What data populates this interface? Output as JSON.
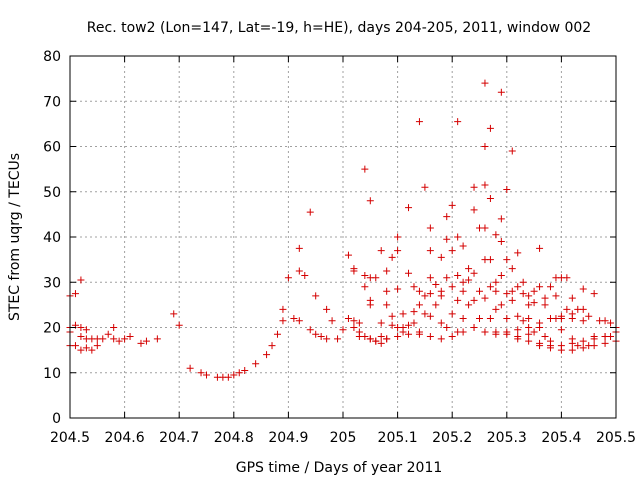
{
  "chart_data": {
    "type": "scatter",
    "title": "Rec. tow2 (Lon=147, Lat=-19, h=HE), days 204-205, 2011, window 002",
    "xlabel": "GPS time / Days of year 2011",
    "ylabel": "STEC from uqrg / TECUs",
    "xlim": [
      204.5,
      205.5
    ],
    "ylim": [
      0,
      80
    ],
    "xticks": [
      204.5,
      204.6,
      204.7,
      204.8,
      204.9,
      205,
      205.1,
      205.2,
      205.3,
      205.4,
      205.5
    ],
    "xtick_labels": [
      "204.5",
      "204.6",
      "204.7",
      "204.8",
      "204.9",
      "205",
      "205.1",
      "205.2",
      "205.3",
      "205.4",
      "205.5"
    ],
    "yticks": [
      0,
      10,
      20,
      30,
      40,
      50,
      60,
      70,
      80
    ],
    "ytick_labels": [
      "0",
      "10",
      "20",
      "30",
      "40",
      "50",
      "60",
      "70",
      "80"
    ],
    "grid": true,
    "marker": "+",
    "marker_color": "#d40000",
    "series": [
      {
        "name": "STEC",
        "points": [
          [
            204.5,
            27
          ],
          [
            204.51,
            27.5
          ],
          [
            204.52,
            30.5
          ],
          [
            204.5,
            20
          ],
          [
            204.51,
            20.5
          ],
          [
            204.52,
            20
          ],
          [
            204.53,
            19.5
          ],
          [
            204.5,
            19
          ],
          [
            204.52,
            18
          ],
          [
            204.53,
            17.5
          ],
          [
            204.54,
            17.5
          ],
          [
            204.55,
            17.5
          ],
          [
            204.56,
            17.5
          ],
          [
            204.57,
            18.5
          ],
          [
            204.58,
            20
          ],
          [
            204.58,
            17.5
          ],
          [
            204.59,
            17
          ],
          [
            204.6,
            17.5
          ],
          [
            204.61,
            18
          ],
          [
            204.63,
            16.5
          ],
          [
            204.64,
            17
          ],
          [
            204.66,
            17.5
          ],
          [
            204.5,
            16
          ],
          [
            204.51,
            16
          ],
          [
            204.52,
            15
          ],
          [
            204.53,
            15.5
          ],
          [
            204.54,
            15
          ],
          [
            204.55,
            16
          ],
          [
            204.69,
            23
          ],
          [
            204.7,
            20.5
          ],
          [
            204.72,
            11
          ],
          [
            204.74,
            10
          ],
          [
            204.75,
            9.5
          ],
          [
            204.77,
            9
          ],
          [
            204.78,
            9
          ],
          [
            204.79,
            9
          ],
          [
            204.8,
            9.5
          ],
          [
            204.81,
            10
          ],
          [
            204.82,
            10.5
          ],
          [
            204.84,
            12
          ],
          [
            204.86,
            14
          ],
          [
            204.87,
            16
          ],
          [
            204.88,
            18.5
          ],
          [
            204.89,
            21.5
          ],
          [
            204.89,
            24
          ],
          [
            204.9,
            31
          ],
          [
            204.91,
            22
          ],
          [
            204.92,
            21.5
          ],
          [
            204.92,
            37.5
          ],
          [
            204.92,
            32.5
          ],
          [
            204.93,
            31.5
          ],
          [
            204.94,
            45.5
          ],
          [
            204.94,
            19.5
          ],
          [
            204.95,
            27
          ],
          [
            204.95,
            18.5
          ],
          [
            204.96,
            18
          ],
          [
            204.97,
            24
          ],
          [
            204.97,
            17.5
          ],
          [
            204.98,
            21.5
          ],
          [
            204.99,
            17.5
          ],
          [
            205,
            19.5
          ],
          [
            205.01,
            22
          ],
          [
            205.01,
            36
          ],
          [
            205.02,
            33
          ],
          [
            205.02,
            32.5
          ],
          [
            205.02,
            20
          ],
          [
            205.03,
            21
          ],
          [
            205.03,
            18
          ],
          [
            205.04,
            55
          ],
          [
            205.04,
            31.5
          ],
          [
            205.04,
            29
          ],
          [
            205.05,
            31
          ],
          [
            205.05,
            48
          ],
          [
            205.05,
            26
          ],
          [
            205.05,
            25
          ],
          [
            205.05,
            17.5
          ],
          [
            205.06,
            31
          ],
          [
            205.06,
            17
          ],
          [
            205.07,
            37
          ],
          [
            205.07,
            21
          ],
          [
            205.07,
            16.5
          ],
          [
            205.08,
            32.5
          ],
          [
            205.08,
            28
          ],
          [
            205.08,
            25
          ],
          [
            205.08,
            17.5
          ],
          [
            205.09,
            35.5
          ],
          [
            205.09,
            22.5
          ],
          [
            205.09,
            20.5
          ],
          [
            205.1,
            40
          ],
          [
            205.1,
            37
          ],
          [
            205.1,
            28.5
          ],
          [
            205.1,
            20
          ],
          [
            205.11,
            23
          ],
          [
            205.11,
            19
          ],
          [
            205.11,
            20
          ],
          [
            205.12,
            46.5
          ],
          [
            205.12,
            32
          ],
          [
            205.12,
            20.5
          ],
          [
            205.13,
            29
          ],
          [
            205.13,
            23.5
          ],
          [
            205.13,
            21
          ],
          [
            205.14,
            65.5
          ],
          [
            205.14,
            28
          ],
          [
            205.14,
            25
          ],
          [
            205.14,
            19
          ],
          [
            205.15,
            51
          ],
          [
            205.15,
            27
          ],
          [
            205.15,
            23
          ],
          [
            205.16,
            42
          ],
          [
            205.16,
            37
          ],
          [
            205.16,
            31
          ],
          [
            205.16,
            22.5
          ],
          [
            205.17,
            29.5
          ],
          [
            205.17,
            25
          ],
          [
            205.18,
            35.5
          ],
          [
            205.18,
            27
          ],
          [
            205.18,
            21
          ],
          [
            205.19,
            44.5
          ],
          [
            205.19,
            39.5
          ],
          [
            205.19,
            31
          ],
          [
            205.19,
            20
          ],
          [
            205.2,
            47
          ],
          [
            205.2,
            37
          ],
          [
            205.2,
            29
          ],
          [
            205.2,
            23
          ],
          [
            205.21,
            65.5
          ],
          [
            205.21,
            40
          ],
          [
            205.21,
            31.5
          ],
          [
            205.21,
            26
          ],
          [
            205.21,
            19
          ],
          [
            205.22,
            38
          ],
          [
            205.22,
            28
          ],
          [
            205.22,
            22
          ],
          [
            205.23,
            33
          ],
          [
            205.23,
            25
          ],
          [
            205.24,
            51
          ],
          [
            205.24,
            46
          ],
          [
            205.24,
            32
          ],
          [
            205.24,
            26
          ],
          [
            205.24,
            20
          ],
          [
            205.25,
            42
          ],
          [
            205.25,
            28
          ],
          [
            205.25,
            22
          ],
          [
            205.26,
            74
          ],
          [
            205.26,
            60
          ],
          [
            205.26,
            51.5
          ],
          [
            205.26,
            42
          ],
          [
            205.26,
            35
          ],
          [
            205.26,
            26.5
          ],
          [
            205.26,
            19
          ],
          [
            205.27,
            64
          ],
          [
            205.27,
            48.5
          ],
          [
            205.27,
            35
          ],
          [
            205.27,
            22
          ],
          [
            205.28,
            40.5
          ],
          [
            205.28,
            30
          ],
          [
            205.28,
            24
          ],
          [
            205.29,
            72
          ],
          [
            205.29,
            44
          ],
          [
            205.29,
            39
          ],
          [
            205.29,
            31.5
          ],
          [
            205.29,
            25
          ],
          [
            205.3,
            50.5
          ],
          [
            205.3,
            35
          ],
          [
            205.3,
            22
          ],
          [
            205.31,
            59
          ],
          [
            205.31,
            33
          ],
          [
            205.31,
            26
          ],
          [
            205.32,
            36.5
          ],
          [
            205.32,
            22.5
          ],
          [
            205.33,
            27.5
          ],
          [
            205.33,
            21.5
          ],
          [
            205.34,
            27
          ],
          [
            205.34,
            22
          ],
          [
            205.35,
            28
          ],
          [
            205.35,
            19
          ],
          [
            205.36,
            37.5
          ],
          [
            205.36,
            29
          ],
          [
            205.36,
            20
          ],
          [
            205.37,
            25
          ],
          [
            205.37,
            18
          ],
          [
            205.38,
            29
          ],
          [
            205.38,
            17
          ],
          [
            205.39,
            31
          ],
          [
            205.39,
            22
          ],
          [
            205.4,
            31
          ],
          [
            205.4,
            19.5
          ],
          [
            205.41,
            31
          ],
          [
            205.41,
            24
          ],
          [
            205.42,
            26.5
          ],
          [
            205.42,
            17.5
          ],
          [
            205.43,
            24
          ],
          [
            205.43,
            16
          ],
          [
            205.44,
            28.5
          ],
          [
            205.44,
            24
          ],
          [
            205.45,
            22.5
          ],
          [
            205.45,
            16
          ],
          [
            205.46,
            27.5
          ],
          [
            205.46,
            18
          ],
          [
            205.47,
            21.5
          ],
          [
            205.48,
            21.5
          ],
          [
            205.48,
            18
          ],
          [
            205.49,
            21
          ],
          [
            205.49,
            18
          ],
          [
            205.5,
            20
          ],
          [
            205.5,
            19
          ],
          [
            205.02,
            21.5
          ],
          [
            205.03,
            19
          ],
          [
            205.04,
            18
          ],
          [
            205.05,
            17.5
          ],
          [
            205.06,
            17
          ],
          [
            205.07,
            18
          ],
          [
            205.08,
            17.5
          ],
          [
            205.1,
            18
          ],
          [
            205.12,
            18.5
          ],
          [
            205.14,
            18.5
          ],
          [
            205.16,
            18
          ],
          [
            205.18,
            17.5
          ],
          [
            205.2,
            18
          ],
          [
            205.22,
            19
          ],
          [
            205.24,
            20
          ],
          [
            205.26,
            19
          ],
          [
            205.28,
            18.5
          ],
          [
            205.3,
            18.5
          ],
          [
            205.32,
            18
          ],
          [
            205.34,
            17
          ],
          [
            205.36,
            16
          ],
          [
            205.38,
            15.5
          ],
          [
            205.4,
            15
          ],
          [
            205.42,
            15
          ],
          [
            205.44,
            15.5
          ],
          [
            205.46,
            16
          ],
          [
            205.48,
            16.5
          ],
          [
            205.5,
            17
          ],
          [
            205.36,
            16.5
          ],
          [
            205.38,
            16
          ],
          [
            205.4,
            16
          ],
          [
            205.42,
            16.5
          ],
          [
            205.44,
            17
          ],
          [
            205.46,
            17.5
          ],
          [
            205.48,
            18
          ],
          [
            205.34,
            25
          ],
          [
            205.35,
            25.5
          ],
          [
            205.37,
            26.5
          ],
          [
            205.39,
            27
          ],
          [
            205.4,
            22
          ],
          [
            205.42,
            22
          ],
          [
            205.44,
            21.5
          ],
          [
            205.3,
            27.5
          ],
          [
            205.31,
            28
          ],
          [
            205.32,
            29
          ],
          [
            205.33,
            30
          ],
          [
            205.28,
            28
          ],
          [
            205.27,
            29
          ],
          [
            205.22,
            30
          ],
          [
            205.23,
            30.5
          ],
          [
            205.18,
            28
          ],
          [
            205.16,
            27.5
          ],
          [
            205.3,
            19
          ],
          [
            205.28,
            19
          ],
          [
            205.32,
            19.5
          ],
          [
            205.34,
            20
          ],
          [
            205.36,
            21
          ],
          [
            205.38,
            22
          ],
          [
            205.4,
            22.5
          ],
          [
            205.42,
            23
          ],
          [
            205.34,
            18.5
          ],
          [
            205.32,
            17.5
          ]
        ]
      }
    ]
  }
}
